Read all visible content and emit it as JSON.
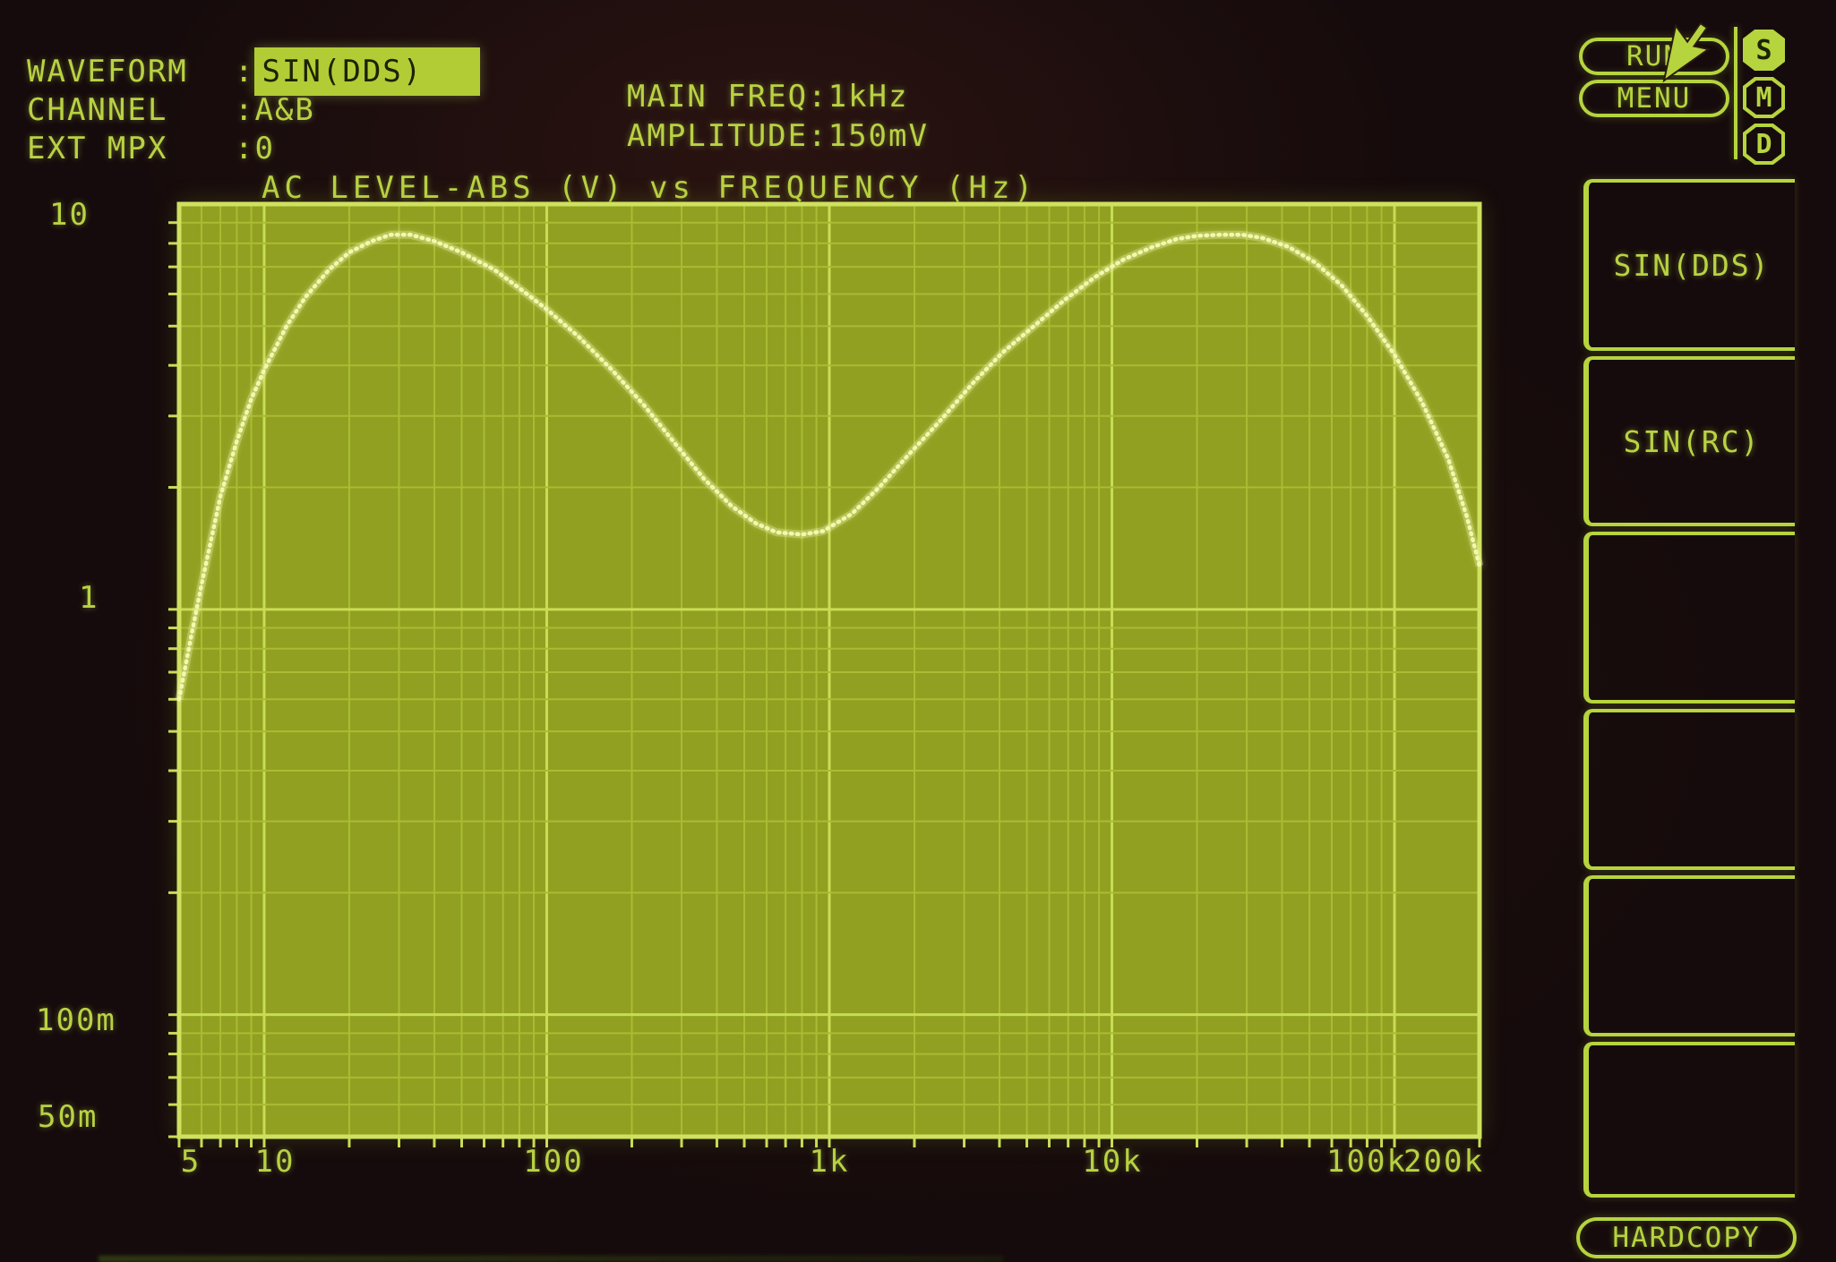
{
  "header": {
    "sep": ":",
    "rows": [
      {
        "label": "WAVEFORM",
        "value": "SIN(DDS)",
        "highlighted": true
      },
      {
        "label": "CHANNEL",
        "value": "A&B",
        "highlighted": false
      },
      {
        "label": "EXT MPX",
        "value": "0",
        "highlighted": false
      }
    ],
    "generator": [
      {
        "label": "MAIN FREQ",
        "value": "1kHz"
      },
      {
        "label": "AMPLITUDE",
        "value": "150mV"
      }
    ]
  },
  "controls": {
    "run_label": "RUN",
    "menu_label": "MENU",
    "hardcopy_label": "HARDCOPY",
    "badges": [
      {
        "label": "S",
        "active": true
      },
      {
        "label": "M",
        "active": false
      },
      {
        "label": "D",
        "active": false
      }
    ]
  },
  "softkeys": [
    {
      "label": "SIN(DDS)"
    },
    {
      "label": "SIN(RC)"
    },
    {
      "label": ""
    },
    {
      "label": ""
    },
    {
      "label": ""
    },
    {
      "label": ""
    }
  ],
  "colors": {
    "background": "#160b0c",
    "phosphor_green": "#b6d43e",
    "highlight_fill": "#b2cc35",
    "highlight_text": "#1b2204",
    "plot_background": "#91a021",
    "grid_minor": "#a9bc33",
    "grid_major": "#c9dc55",
    "trace": "#f2f8ad"
  },
  "chart_data": {
    "type": "line",
    "title": "AC LEVEL-ABS (V) vs FREQUENCY (Hz)",
    "xlabel": "FREQUENCY (Hz)",
    "ylabel": "AC LEVEL-ABS (V)",
    "x_scale": "log",
    "y_scale": "log",
    "xlim": [
      5,
      200000
    ],
    "ylim": [
      0.05,
      10
    ],
    "grid": true,
    "x_ticks": [
      {
        "value": 5,
        "label": "5"
      },
      {
        "value": 10,
        "label": "10"
      },
      {
        "value": 100,
        "label": "100"
      },
      {
        "value": 1000,
        "label": "1k"
      },
      {
        "value": 10000,
        "label": "10k"
      },
      {
        "value": 100000,
        "label": "100k"
      },
      {
        "value": 200000,
        "label": "200k"
      }
    ],
    "y_ticks": [
      {
        "value": 10,
        "label": "10"
      },
      {
        "value": 1,
        "label": "1"
      },
      {
        "value": 0.1,
        "label": "100m"
      },
      {
        "value": 0.05,
        "label": "50m"
      }
    ],
    "series": [
      {
        "name": "AC LEVEL-ABS",
        "points": [
          [
            5,
            0.6
          ],
          [
            5.5,
            0.85
          ],
          [
            6,
            1.15
          ],
          [
            7,
            1.9
          ],
          [
            8,
            2.6
          ],
          [
            9,
            3.3
          ],
          [
            10,
            3.9
          ],
          [
            12,
            5.0
          ],
          [
            14,
            5.9
          ],
          [
            17,
            6.9
          ],
          [
            20,
            7.6
          ],
          [
            24,
            8.1
          ],
          [
            28,
            8.4
          ],
          [
            33,
            8.4
          ],
          [
            40,
            8.1
          ],
          [
            50,
            7.6
          ],
          [
            65,
            6.9
          ],
          [
            80,
            6.2
          ],
          [
            100,
            5.5
          ],
          [
            130,
            4.7
          ],
          [
            170,
            3.9
          ],
          [
            220,
            3.2
          ],
          [
            280,
            2.6
          ],
          [
            360,
            2.1
          ],
          [
            450,
            1.8
          ],
          [
            550,
            1.63
          ],
          [
            650,
            1.55
          ],
          [
            800,
            1.53
          ],
          [
            950,
            1.56
          ],
          [
            1200,
            1.72
          ],
          [
            1500,
            2.0
          ],
          [
            1900,
            2.4
          ],
          [
            2500,
            2.95
          ],
          [
            3200,
            3.6
          ],
          [
            4100,
            4.3
          ],
          [
            5300,
            5.0
          ],
          [
            6800,
            5.8
          ],
          [
            8700,
            6.6
          ],
          [
            11000,
            7.3
          ],
          [
            14000,
            7.85
          ],
          [
            17000,
            8.2
          ],
          [
            20000,
            8.35
          ],
          [
            24000,
            8.4
          ],
          [
            29000,
            8.4
          ],
          [
            34000,
            8.25
          ],
          [
            42000,
            7.85
          ],
          [
            52000,
            7.2
          ],
          [
            65000,
            6.3
          ],
          [
            80000,
            5.3
          ],
          [
            100000,
            4.25
          ],
          [
            125000,
            3.25
          ],
          [
            155000,
            2.35
          ],
          [
            180000,
            1.7
          ],
          [
            200000,
            1.28
          ]
        ]
      }
    ]
  }
}
